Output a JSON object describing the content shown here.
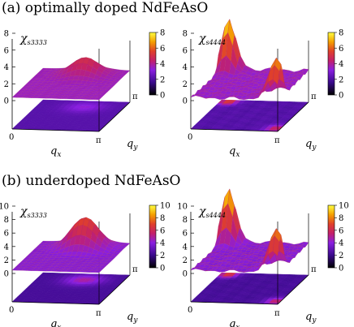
{
  "sections": [
    {
      "title": "(a) optimally doped NdFeAsO"
    },
    {
      "title": "(b) underdoped NdFeAsO"
    }
  ],
  "axis": {
    "x_name": "q",
    "x_sub": "x",
    "y_name": "q",
    "y_sub": "y",
    "zero": "0",
    "pi": "π"
  },
  "chart_data": [
    {
      "type": "heatmap",
      "section": "a",
      "quantity": "χ",
      "subscript": "s3333",
      "zlim": [
        0,
        8
      ],
      "zticks": [
        "0",
        "2",
        "4",
        "6",
        "8"
      ],
      "colorbar_ticks": [
        "0",
        "2",
        "4",
        "6",
        "8"
      ],
      "surface": "broad hump",
      "baseline": 2.5,
      "peak": 4.6
    },
    {
      "type": "heatmap",
      "section": "a",
      "quantity": "χ",
      "subscript": "s4444",
      "zlim": [
        0,
        8
      ],
      "zticks": [
        "0",
        "2",
        "4",
        "6",
        "8"
      ],
      "colorbar_ticks": [
        "0",
        "2",
        "4",
        "6",
        "8"
      ],
      "surface": "peaks near (π,0) and (0,π)",
      "baseline": 2.4,
      "peak": 8.5
    },
    {
      "type": "heatmap",
      "section": "b",
      "quantity": "χ",
      "subscript": "s3333",
      "zlim": [
        0,
        10
      ],
      "zticks": [
        "0",
        "2",
        "4",
        "6",
        "8",
        "10"
      ],
      "colorbar_ticks": [
        "0",
        "2",
        "4",
        "6",
        "8",
        "10"
      ],
      "surface": "broad hump",
      "baseline": 2.4,
      "peak": 7.0
    },
    {
      "type": "heatmap",
      "section": "b",
      "quantity": "χ",
      "subscript": "s4444",
      "zlim": [
        0,
        10
      ],
      "zticks": [
        "0",
        "2",
        "4",
        "6",
        "8",
        "10"
      ],
      "colorbar_ticks": [
        "0",
        "2",
        "4",
        "6",
        "8",
        "10"
      ],
      "surface": "peaks near (π,0) and (0,π)",
      "baseline": 2.4,
      "peak": 10.5
    }
  ]
}
